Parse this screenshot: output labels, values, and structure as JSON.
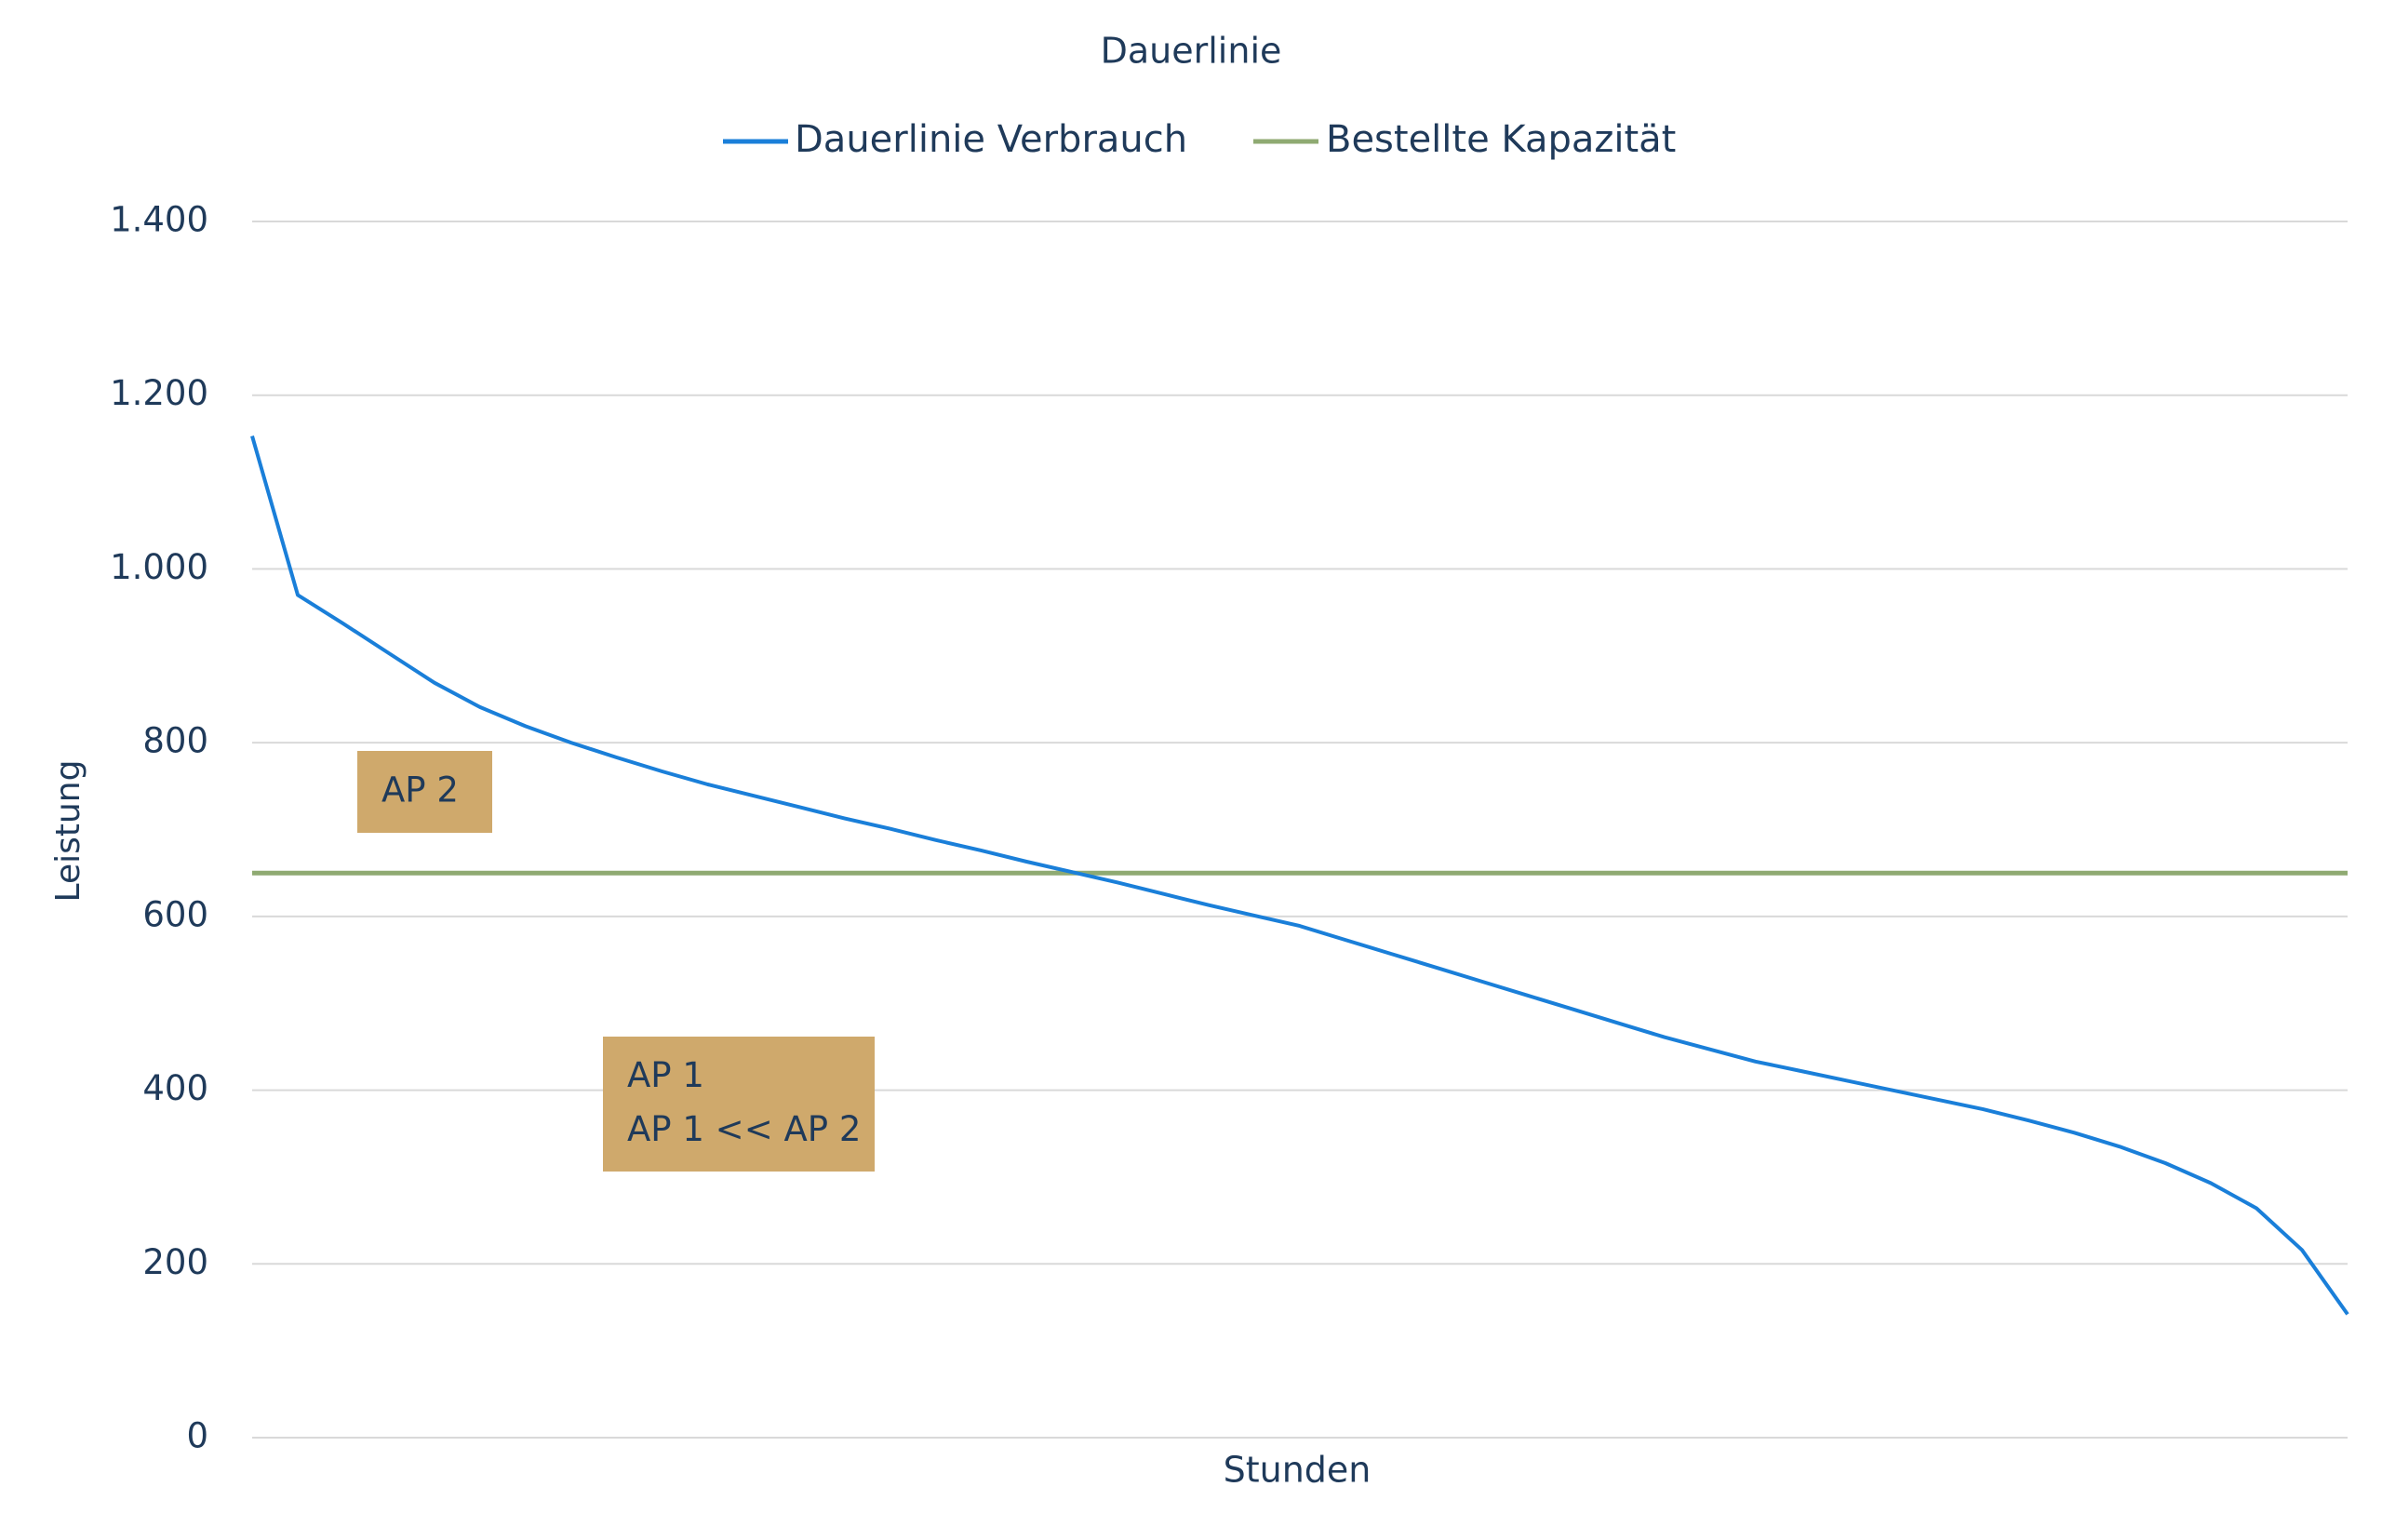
{
  "chart_data": {
    "type": "line",
    "title": "Dauerlinie",
    "x_label": "Stunden",
    "y_label": "Leistung",
    "categories": [
      null,
      null,
      null,
      null,
      null,
      null,
      null,
      null,
      null,
      null,
      null,
      null,
      null,
      null,
      null,
      null,
      null,
      null,
      null,
      null,
      null,
      null,
      null,
      null,
      null,
      null,
      null,
      null,
      null,
      null,
      null,
      null,
      null,
      null,
      null,
      null,
      null,
      null,
      null,
      null,
      null,
      null,
      null,
      null,
      null,
      null,
      null
    ],
    "series": [
      {
        "name": "Dauerlinie Verbrauch",
        "color": "#1a7fd9",
        "values": [
          1153,
          970,
          937,
          903,
          869,
          841,
          819,
          800,
          783,
          767,
          752,
          739,
          726,
          713,
          701,
          688,
          676,
          663,
          651,
          639,
          626,
          613,
          601,
          589,
          573,
          557,
          541,
          525,
          509,
          493,
          477,
          461,
          447,
          433,
          422,
          411,
          400,
          389,
          378,
          365,
          351,
          335,
          316,
          293,
          264,
          216,
          142
        ]
      },
      {
        "name": "Bestellte Kapazität",
        "color": "#8faa72",
        "values": [
          650,
          650,
          650,
          650,
          650,
          650,
          650,
          650,
          650,
          650,
          650,
          650,
          650,
          650,
          650,
          650,
          650,
          650,
          650,
          650,
          650,
          650,
          650,
          650,
          650,
          650,
          650,
          650,
          650,
          650,
          650,
          650,
          650,
          650,
          650,
          650,
          650,
          650,
          650,
          650,
          650,
          650,
          650,
          650,
          650,
          650,
          650
        ]
      }
    ],
    "ylim": [
      0,
      1400
    ],
    "yticks": [
      0,
      200,
      400,
      600,
      800,
      {
        "value": 1000,
        "label": "1.000"
      },
      {
        "value": 1200,
        "label": "1.200"
      },
      {
        "value": 1400,
        "label": "1.400"
      }
    ],
    "grid": true,
    "legend": "top",
    "annotations": [
      "AP 2",
      "AP 1",
      "AP 1 << AP 2"
    ]
  }
}
